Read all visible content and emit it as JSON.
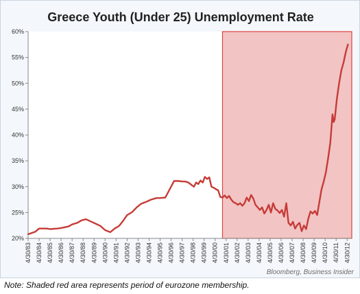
{
  "chart_data": {
    "type": "line",
    "title": "Greece Youth (Under 25) Unemployment Rate",
    "xlabel": "",
    "ylabel": "",
    "ylim": [
      20,
      60
    ],
    "yticks": [
      "20%",
      "25%",
      "30%",
      "35%",
      "40%",
      "45%",
      "50%",
      "55%",
      "60%"
    ],
    "ytick_values": [
      20,
      25,
      30,
      35,
      40,
      45,
      50,
      55,
      60
    ],
    "xlim": [
      1983.33,
      2012.75
    ],
    "xticks": [
      "4/30/83",
      "4/30/84",
      "4/30/85",
      "4/30/86",
      "4/30/87",
      "4/30/88",
      "4/30/89",
      "4/30/90",
      "4/30/91",
      "4/30/92",
      "4/30/93",
      "4/30/94",
      "4/30/95",
      "4/30/96",
      "4/30/97",
      "4/30/98",
      "4/30/99",
      "4/30/00",
      "4/30/01",
      "4/30/02",
      "4/30/03",
      "4/30/04",
      "4/30/05",
      "4/30/06",
      "4/30/07",
      "4/30/08",
      "4/30/09",
      "4/30/10",
      "4/30/11",
      "4/30/12"
    ],
    "xtick_values": [
      1983.33,
      1984.33,
      1985.33,
      1986.33,
      1987.33,
      1988.33,
      1989.33,
      1990.33,
      1991.33,
      1992.33,
      1993.33,
      1994.33,
      1995.33,
      1996.33,
      1997.33,
      1998.33,
      1999.33,
      2000.33,
      2001.33,
      2002.33,
      2003.33,
      2004.33,
      2005.33,
      2006.33,
      2007.33,
      2008.33,
      2009.33,
      2010.33,
      2011.33,
      2012.33
    ],
    "shaded_region": {
      "from": 2001.0,
      "to": 2012.75,
      "color": "#f2c4c4",
      "border": "#d9443f"
    },
    "grid": false,
    "series": [
      {
        "color": "#c63b36",
        "x": [
          1983.33,
          1984.0,
          1984.33,
          1985.0,
          1985.33,
          1986.0,
          1986.33,
          1987.0,
          1987.33,
          1987.8,
          1988.2,
          1988.6,
          1989.0,
          1989.5,
          1989.9,
          1990.33,
          1990.8,
          1991.2,
          1991.6,
          1992.0,
          1992.33,
          1992.8,
          1993.2,
          1993.6,
          1994.0,
          1994.5,
          1995.0,
          1995.33,
          1995.8,
          1996.2,
          1996.6,
          1997.0,
          1997.33,
          1997.6,
          1997.9,
          1998.2,
          1998.4,
          1998.6,
          1998.8,
          1999.0,
          1999.2,
          1999.4,
          1999.6,
          1999.8,
          2000.0,
          2000.2,
          2000.4,
          2000.6,
          2000.8,
          2001.0,
          2001.2,
          2001.4,
          2001.6,
          2001.8,
          2002.0,
          2002.2,
          2002.4,
          2002.6,
          2002.8,
          2003.0,
          2003.2,
          2003.4,
          2003.6,
          2003.8,
          2004.0,
          2004.2,
          2004.4,
          2004.6,
          2004.8,
          2005.0,
          2005.2,
          2005.4,
          2005.6,
          2005.8,
          2006.0,
          2006.2,
          2006.4,
          2006.6,
          2006.8,
          2007.0,
          2007.2,
          2007.4,
          2007.6,
          2007.8,
          2008.0,
          2008.2,
          2008.4,
          2008.6,
          2008.8,
          2009.0,
          2009.2,
          2009.4,
          2009.6,
          2009.8,
          2010.0,
          2010.2,
          2010.4,
          2010.6,
          2010.8,
          2011.0,
          2011.1,
          2011.2,
          2011.4,
          2011.6,
          2011.8,
          2012.0,
          2012.2,
          2012.4
        ],
        "y": [
          20.8,
          21.3,
          21.9,
          21.9,
          21.8,
          21.9,
          22.0,
          22.3,
          22.7,
          23.0,
          23.5,
          23.7,
          23.3,
          22.8,
          22.4,
          21.6,
          21.2,
          21.9,
          22.4,
          23.5,
          24.5,
          25.1,
          26.0,
          26.7,
          27.0,
          27.5,
          27.8,
          27.8,
          27.9,
          29.5,
          31.1,
          31.1,
          31.0,
          31.0,
          30.8,
          30.3,
          30.0,
          30.8,
          30.5,
          31.2,
          30.8,
          31.9,
          31.5,
          31.8,
          30.0,
          29.8,
          29.5,
          29.3,
          28.0,
          27.9,
          28.3,
          27.8,
          28.2,
          27.5,
          27.0,
          26.8,
          26.5,
          26.8,
          26.3,
          26.8,
          27.9,
          27.2,
          28.4,
          27.7,
          26.5,
          26.0,
          25.5,
          26.0,
          24.8,
          25.5,
          26.5,
          25.0,
          26.8,
          25.7,
          25.4,
          24.9,
          25.5,
          24.2,
          26.8,
          23.0,
          22.5,
          23.2,
          21.9,
          22.6,
          23.0,
          21.4,
          22.5,
          21.8,
          23.8,
          25.2,
          24.8,
          25.3,
          24.5,
          27.0,
          29.5,
          31.0,
          32.8,
          35.5,
          38.5,
          44.0,
          42.5,
          43.0,
          47.0,
          50.0,
          52.5,
          54.0,
          56.0,
          57.5
        ]
      }
    ]
  },
  "note": "Note: Shaded red area represents period of eurozone membership.",
  "source": "Bloomberg, Business Insider"
}
